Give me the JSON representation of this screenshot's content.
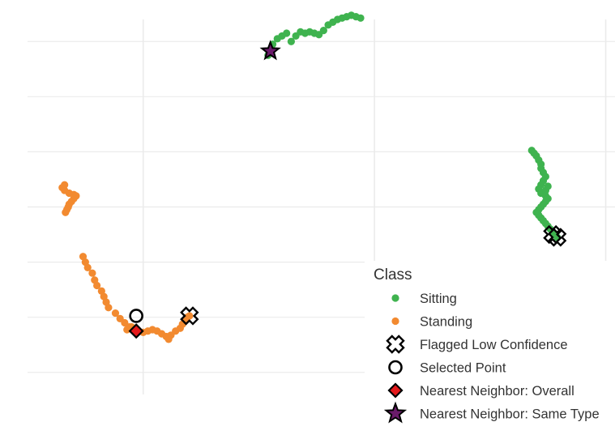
{
  "chart_data": {
    "type": "scatter",
    "title": "",
    "xlabel": "",
    "ylabel": "",
    "xlim": [
      -2.5,
      10.2
    ],
    "ylim": [
      -2.8,
      10.8
    ],
    "grid": true,
    "legend_position": "bottom-right",
    "legend_title": "Class",
    "colors": {
      "Sitting": "#3fb34f",
      "Standing": "#f28a30",
      "outline": "#000000",
      "diamond": "#e41a1c",
      "star": "#6a1b6a",
      "grid": "#ebebeb"
    },
    "series": [
      {
        "name": "Sitting",
        "points": [
          [
            3.2,
            10.0
          ],
          [
            3.3,
            10.2
          ],
          [
            3.4,
            10.35
          ],
          [
            3.5,
            10.3
          ],
          [
            3.6,
            10.35
          ],
          [
            3.7,
            10.3
          ],
          [
            3.8,
            10.25
          ],
          [
            3.9,
            10.4
          ],
          [
            4.0,
            10.6
          ],
          [
            4.1,
            10.7
          ],
          [
            4.2,
            10.8
          ],
          [
            4.3,
            10.85
          ],
          [
            4.4,
            10.9
          ],
          [
            4.5,
            10.95
          ],
          [
            4.6,
            10.9
          ],
          [
            4.7,
            10.85
          ],
          [
            2.7,
            9.5
          ],
          [
            2.75,
            9.7
          ],
          [
            2.8,
            9.9
          ],
          [
            2.9,
            10.1
          ],
          [
            3.0,
            10.2
          ],
          [
            3.1,
            10.3
          ],
          [
            8.4,
            6.05
          ],
          [
            8.45,
            5.95
          ],
          [
            8.5,
            5.85
          ],
          [
            8.55,
            5.7
          ],
          [
            8.6,
            5.55
          ],
          [
            8.6,
            5.4
          ],
          [
            8.65,
            5.25
          ],
          [
            8.7,
            5.1
          ],
          [
            8.65,
            4.95
          ],
          [
            8.6,
            4.8
          ],
          [
            8.55,
            4.65
          ],
          [
            8.6,
            4.5
          ],
          [
            8.7,
            4.4
          ],
          [
            8.75,
            4.3
          ],
          [
            8.7,
            4.2
          ],
          [
            8.65,
            4.1
          ],
          [
            8.6,
            4.0
          ],
          [
            8.55,
            3.9
          ],
          [
            8.5,
            3.8
          ],
          [
            8.55,
            3.7
          ],
          [
            8.6,
            3.6
          ],
          [
            8.65,
            3.5
          ],
          [
            8.7,
            3.4
          ],
          [
            8.75,
            3.3
          ],
          [
            8.8,
            3.2
          ],
          [
            8.85,
            3.1
          ],
          [
            8.9,
            3.0
          ],
          [
            8.95,
            2.9
          ],
          [
            8.7,
            4.6
          ],
          [
            8.75,
            4.75
          ]
        ]
      },
      {
        "name": "Standing",
        "points": [
          [
            -1.7,
            4.8
          ],
          [
            -1.75,
            4.7
          ],
          [
            -1.7,
            4.6
          ],
          [
            -1.6,
            4.5
          ],
          [
            -1.5,
            4.45
          ],
          [
            -1.45,
            4.4
          ],
          [
            -1.5,
            4.3
          ],
          [
            -1.55,
            4.2
          ],
          [
            -1.6,
            4.1
          ],
          [
            -1.62,
            4.0
          ],
          [
            -1.65,
            3.9
          ],
          [
            -1.68,
            3.8
          ],
          [
            -1.3,
            2.2
          ],
          [
            -1.25,
            2.0
          ],
          [
            -1.2,
            1.8
          ],
          [
            -1.1,
            1.6
          ],
          [
            -1.05,
            1.35
          ],
          [
            -1.0,
            1.15
          ],
          [
            -0.9,
            0.95
          ],
          [
            -0.85,
            0.75
          ],
          [
            -0.8,
            0.55
          ],
          [
            -0.75,
            0.35
          ],
          [
            -0.6,
            0.15
          ],
          [
            -0.5,
            -0.05
          ],
          [
            -0.4,
            -0.2
          ],
          [
            -0.3,
            -0.35
          ],
          [
            -0.2,
            -0.45
          ],
          [
            -0.1,
            -0.5
          ],
          [
            0.0,
            -0.55
          ],
          [
            0.1,
            -0.5
          ],
          [
            0.2,
            -0.45
          ],
          [
            0.3,
            -0.5
          ],
          [
            0.4,
            -0.6
          ],
          [
            0.5,
            -0.7
          ],
          [
            0.55,
            -0.8
          ],
          [
            0.6,
            -0.65
          ],
          [
            0.7,
            -0.5
          ],
          [
            0.8,
            -0.4
          ],
          [
            0.85,
            -0.25
          ],
          [
            0.9,
            -0.1
          ],
          [
            0.95,
            0.0
          ],
          [
            1.0,
            0.05
          ],
          [
            -0.35,
            -0.45
          ],
          [
            -0.25,
            -0.35
          ]
        ]
      }
    ],
    "flagged_low_confidence": [
      [
        1.0,
        0.05
      ],
      [
        8.85,
        3.0
      ],
      [
        8.95,
        2.9
      ]
    ],
    "selected_point": [
      -0.15,
      0.05
    ],
    "nearest_neighbor_overall": [
      -0.15,
      -0.5
    ],
    "nearest_neighbor_same_type": [
      2.75,
      9.65
    ],
    "legend": [
      {
        "label": "Sitting",
        "marker": "dot-green"
      },
      {
        "label": "Standing",
        "marker": "dot-orange"
      },
      {
        "label": "Flagged Low Confidence",
        "marker": "cross-outline"
      },
      {
        "label": "Selected Point",
        "marker": "circle-outline"
      },
      {
        "label": "Nearest Neighbor: Overall",
        "marker": "diamond-red"
      },
      {
        "label": "Nearest Neighbor: Same Type",
        "marker": "star-purple"
      }
    ]
  }
}
